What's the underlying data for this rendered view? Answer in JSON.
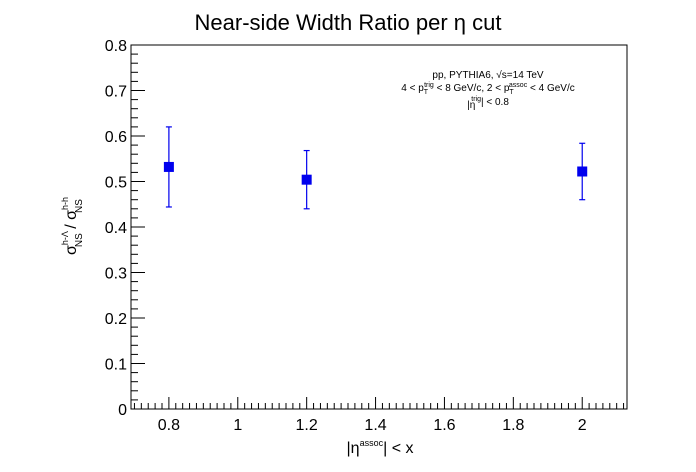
{
  "chart_data": {
    "type": "scatter",
    "title": "Near-side Width Ratio per η cut",
    "xlabel": {
      "base": "|η",
      "sup": "assoc",
      "rest": "| < x"
    },
    "ylabel": {
      "s1": "σ",
      "sup1": "h-Λ",
      "sub1": "NS",
      "sep": " / ",
      "s2": "σ",
      "sup2": "h-h",
      "sub2": "NS"
    },
    "xlim": [
      0.69,
      2.13
    ],
    "ylim": [
      0,
      0.8
    ],
    "xticks": [
      {
        "v": 0.8,
        "label": "0.8"
      },
      {
        "v": 1.0,
        "label": "1"
      },
      {
        "v": 1.2,
        "label": "1.2"
      },
      {
        "v": 1.4,
        "label": "1.4"
      },
      {
        "v": 1.6,
        "label": "1.6"
      },
      {
        "v": 1.8,
        "label": "1.8"
      },
      {
        "v": 2.0,
        "label": "2"
      }
    ],
    "yticks": [
      {
        "v": 0,
        "label": "0"
      },
      {
        "v": 0.1,
        "label": "0.1"
      },
      {
        "v": 0.2,
        "label": "0.2"
      },
      {
        "v": 0.3,
        "label": "0.3"
      },
      {
        "v": 0.4,
        "label": "0.4"
      },
      {
        "v": 0.5,
        "label": "0.5"
      },
      {
        "v": 0.6,
        "label": "0.6"
      },
      {
        "v": 0.7,
        "label": "0.7"
      },
      {
        "v": 0.8,
        "label": "0.8"
      }
    ],
    "series": [
      {
        "color": "#0000ee",
        "marker": "square",
        "points": [
          {
            "x": 0.8,
            "y": 0.532,
            "err": 0.088
          },
          {
            "x": 1.2,
            "y": 0.504,
            "err": 0.064
          },
          {
            "x": 2.0,
            "y": 0.522,
            "err": 0.062
          }
        ]
      }
    ],
    "annotations": [
      {
        "parts": [
          {
            "t": "pp, PYTHIA6, √s=14 TeV"
          }
        ]
      },
      {
        "parts": [
          {
            "t": "4 < p"
          },
          {
            "t": "T",
            "sub": true
          },
          {
            "t": "trig",
            "sup": true
          },
          {
            "t": " < 8 GeV/c, 2 < p"
          },
          {
            "t": "T",
            "sub": true
          },
          {
            "t": "assoc",
            "sup": true
          },
          {
            "t": " < 4 GeV/c"
          }
        ]
      },
      {
        "parts": [
          {
            "t": "|η"
          },
          {
            "t": "trig",
            "sup": true
          },
          {
            "t": "| < 0.8"
          }
        ]
      }
    ],
    "grid": false,
    "legend": "none"
  }
}
